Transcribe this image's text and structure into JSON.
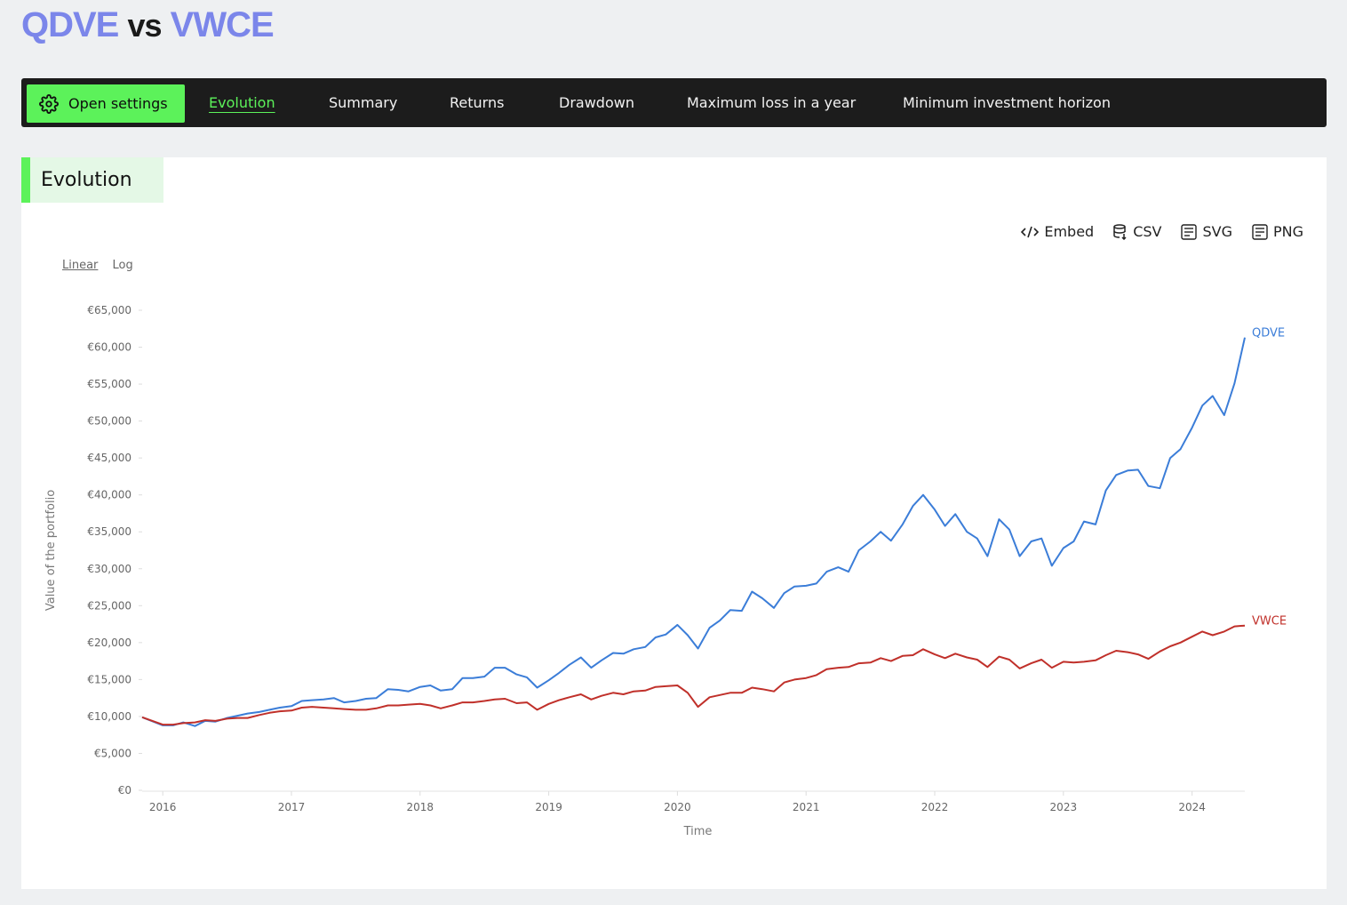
{
  "header": {
    "name_a": "QDVE",
    "vs": "vs",
    "name_b": "VWCE"
  },
  "nav": {
    "settings_label": "Open settings",
    "tabs": [
      "Evolution",
      "Summary",
      "Returns",
      "Drawdown",
      "Maximum loss in a year",
      "Minimum investment horizon"
    ],
    "active_tab": "Evolution"
  },
  "section": {
    "title": "Evolution"
  },
  "exports": {
    "embed": "Embed",
    "csv": "CSV",
    "svg": "SVG",
    "png": "PNG"
  },
  "scale": {
    "linear": "Linear",
    "log": "Log",
    "selected": "Linear"
  },
  "colors": {
    "accent": "#5cf25a",
    "title": "#7b86ea",
    "qdve": "#3b7dd8",
    "vwce": "#c0302a"
  },
  "chart_data": {
    "type": "line",
    "xlabel": "Time",
    "ylabel": "Value of the portfolio",
    "ylim": [
      0,
      65000
    ],
    "xlim": [
      2015.84,
      2024.41
    ],
    "x_ticks": [
      2016,
      2017,
      2018,
      2019,
      2020,
      2021,
      2022,
      2023,
      2024
    ],
    "y_ticks": [
      0,
      5000,
      10000,
      15000,
      20000,
      25000,
      30000,
      35000,
      40000,
      45000,
      50000,
      55000,
      60000,
      65000
    ],
    "y_tick_labels": [
      "€0",
      "€5,000",
      "€10,000",
      "€15,000",
      "€20,000",
      "€25,000",
      "€30,000",
      "€35,000",
      "€40,000",
      "€45,000",
      "€50,000",
      "€55,000",
      "€60,000",
      "€65,000"
    ],
    "grid": false,
    "legend": "line-end labels",
    "series": [
      {
        "name": "QDVE",
        "x": [
          2015.84,
          2016.0,
          2016.08,
          2016.16,
          2016.25,
          2016.33,
          2016.41,
          2016.5,
          2016.58,
          2016.66,
          2016.75,
          2016.83,
          2016.91,
          2017.0,
          2017.08,
          2017.16,
          2017.25,
          2017.33,
          2017.41,
          2017.5,
          2017.58,
          2017.66,
          2017.75,
          2017.83,
          2017.91,
          2018.0,
          2018.08,
          2018.16,
          2018.25,
          2018.33,
          2018.41,
          2018.5,
          2018.58,
          2018.66,
          2018.75,
          2018.83,
          2018.91,
          2019.0,
          2019.08,
          2019.16,
          2019.25,
          2019.33,
          2019.41,
          2019.5,
          2019.58,
          2019.66,
          2019.75,
          2019.83,
          2019.91,
          2020.0,
          2020.08,
          2020.16,
          2020.25,
          2020.33,
          2020.41,
          2020.5,
          2020.58,
          2020.66,
          2020.75,
          2020.83,
          2020.91,
          2021.0,
          2021.08,
          2021.16,
          2021.25,
          2021.33,
          2021.41,
          2021.5,
          2021.58,
          2021.66,
          2021.75,
          2021.83,
          2021.91,
          2022.0,
          2022.08,
          2022.16,
          2022.25,
          2022.33,
          2022.41,
          2022.5,
          2022.58,
          2022.66,
          2022.75,
          2022.83,
          2022.91,
          2023.0,
          2023.08,
          2023.16,
          2023.25,
          2023.33,
          2023.41,
          2023.5,
          2023.58,
          2023.66,
          2023.75,
          2023.83,
          2023.91,
          2024.0,
          2024.08,
          2024.16,
          2024.25,
          2024.33,
          2024.41
        ],
        "values": [
          9900,
          8800,
          8800,
          9200,
          8700,
          9400,
          9300,
          9800,
          10100,
          10400,
          10600,
          10900,
          11200,
          11400,
          12100,
          12200,
          12300,
          12500,
          11900,
          12100,
          12400,
          12500,
          13700,
          13600,
          13400,
          14000,
          14200,
          13500,
          13700,
          15200,
          15200,
          15400,
          16600,
          16600,
          15700,
          15300,
          13900,
          14900,
          15900,
          17000,
          18000,
          16600,
          17600,
          18600,
          18500,
          19100,
          19400,
          20700,
          21100,
          22400,
          21000,
          19200,
          22000,
          23000,
          24400,
          24300,
          26900,
          26000,
          24700,
          26700,
          27600,
          27700,
          28000,
          29600,
          30200,
          29600,
          32500,
          33700,
          35000,
          33800,
          36000,
          38500,
          40000,
          38000,
          35800,
          37400,
          35000,
          34100,
          31700,
          36700,
          35300,
          31700,
          33700,
          34100,
          30400,
          32800,
          33700,
          36400,
          36000,
          40600,
          42700,
          43300,
          43400,
          41200,
          40900,
          45000,
          46200,
          49100,
          52100,
          53400,
          50800,
          55100,
          61300
        ]
      },
      {
        "name": "VWCE",
        "x": [
          2015.84,
          2016.0,
          2016.08,
          2016.16,
          2016.25,
          2016.33,
          2016.41,
          2016.5,
          2016.58,
          2016.66,
          2016.75,
          2016.83,
          2016.91,
          2017.0,
          2017.08,
          2017.16,
          2017.25,
          2017.33,
          2017.41,
          2017.5,
          2017.58,
          2017.66,
          2017.75,
          2017.83,
          2017.91,
          2018.0,
          2018.08,
          2018.16,
          2018.25,
          2018.33,
          2018.41,
          2018.5,
          2018.58,
          2018.66,
          2018.75,
          2018.83,
          2018.91,
          2019.0,
          2019.08,
          2019.16,
          2019.25,
          2019.33,
          2019.41,
          2019.5,
          2019.58,
          2019.66,
          2019.75,
          2019.83,
          2019.91,
          2020.0,
          2020.08,
          2020.16,
          2020.25,
          2020.33,
          2020.41,
          2020.5,
          2020.58,
          2020.66,
          2020.75,
          2020.83,
          2020.91,
          2021.0,
          2021.08,
          2021.16,
          2021.25,
          2021.33,
          2021.41,
          2021.5,
          2021.58,
          2021.66,
          2021.75,
          2021.83,
          2021.91,
          2022.0,
          2022.08,
          2022.16,
          2022.25,
          2022.33,
          2022.41,
          2022.5,
          2022.58,
          2022.66,
          2022.75,
          2022.83,
          2022.91,
          2023.0,
          2023.08,
          2023.16,
          2023.25,
          2023.33,
          2023.41,
          2023.5,
          2023.58,
          2023.66,
          2023.75,
          2023.83,
          2023.91,
          2024.0,
          2024.08,
          2024.16,
          2024.25,
          2024.33,
          2024.41
        ],
        "values": [
          9900,
          8900,
          8900,
          9100,
          9200,
          9500,
          9400,
          9700,
          9800,
          9800,
          10200,
          10500,
          10700,
          10800,
          11200,
          11300,
          11200,
          11100,
          11000,
          10900,
          10900,
          11100,
          11500,
          11500,
          11600,
          11700,
          11500,
          11100,
          11500,
          11900,
          11900,
          12100,
          12300,
          12400,
          11800,
          11900,
          10900,
          11700,
          12200,
          12600,
          13000,
          12300,
          12800,
          13200,
          13000,
          13400,
          13500,
          14000,
          14100,
          14200,
          13200,
          11300,
          12600,
          12900,
          13200,
          13200,
          13900,
          13700,
          13400,
          14600,
          15000,
          15200,
          15600,
          16400,
          16600,
          16700,
          17200,
          17300,
          17900,
          17500,
          18200,
          18300,
          19100,
          18400,
          17900,
          18500,
          18000,
          17700,
          16700,
          18100,
          17700,
          16500,
          17200,
          17700,
          16600,
          17400,
          17300,
          17400,
          17600,
          18300,
          18900,
          18700,
          18400,
          17800,
          18800,
          19500,
          20000,
          20800,
          21500,
          21000,
          21500,
          22200,
          22300
        ]
      }
    ]
  }
}
